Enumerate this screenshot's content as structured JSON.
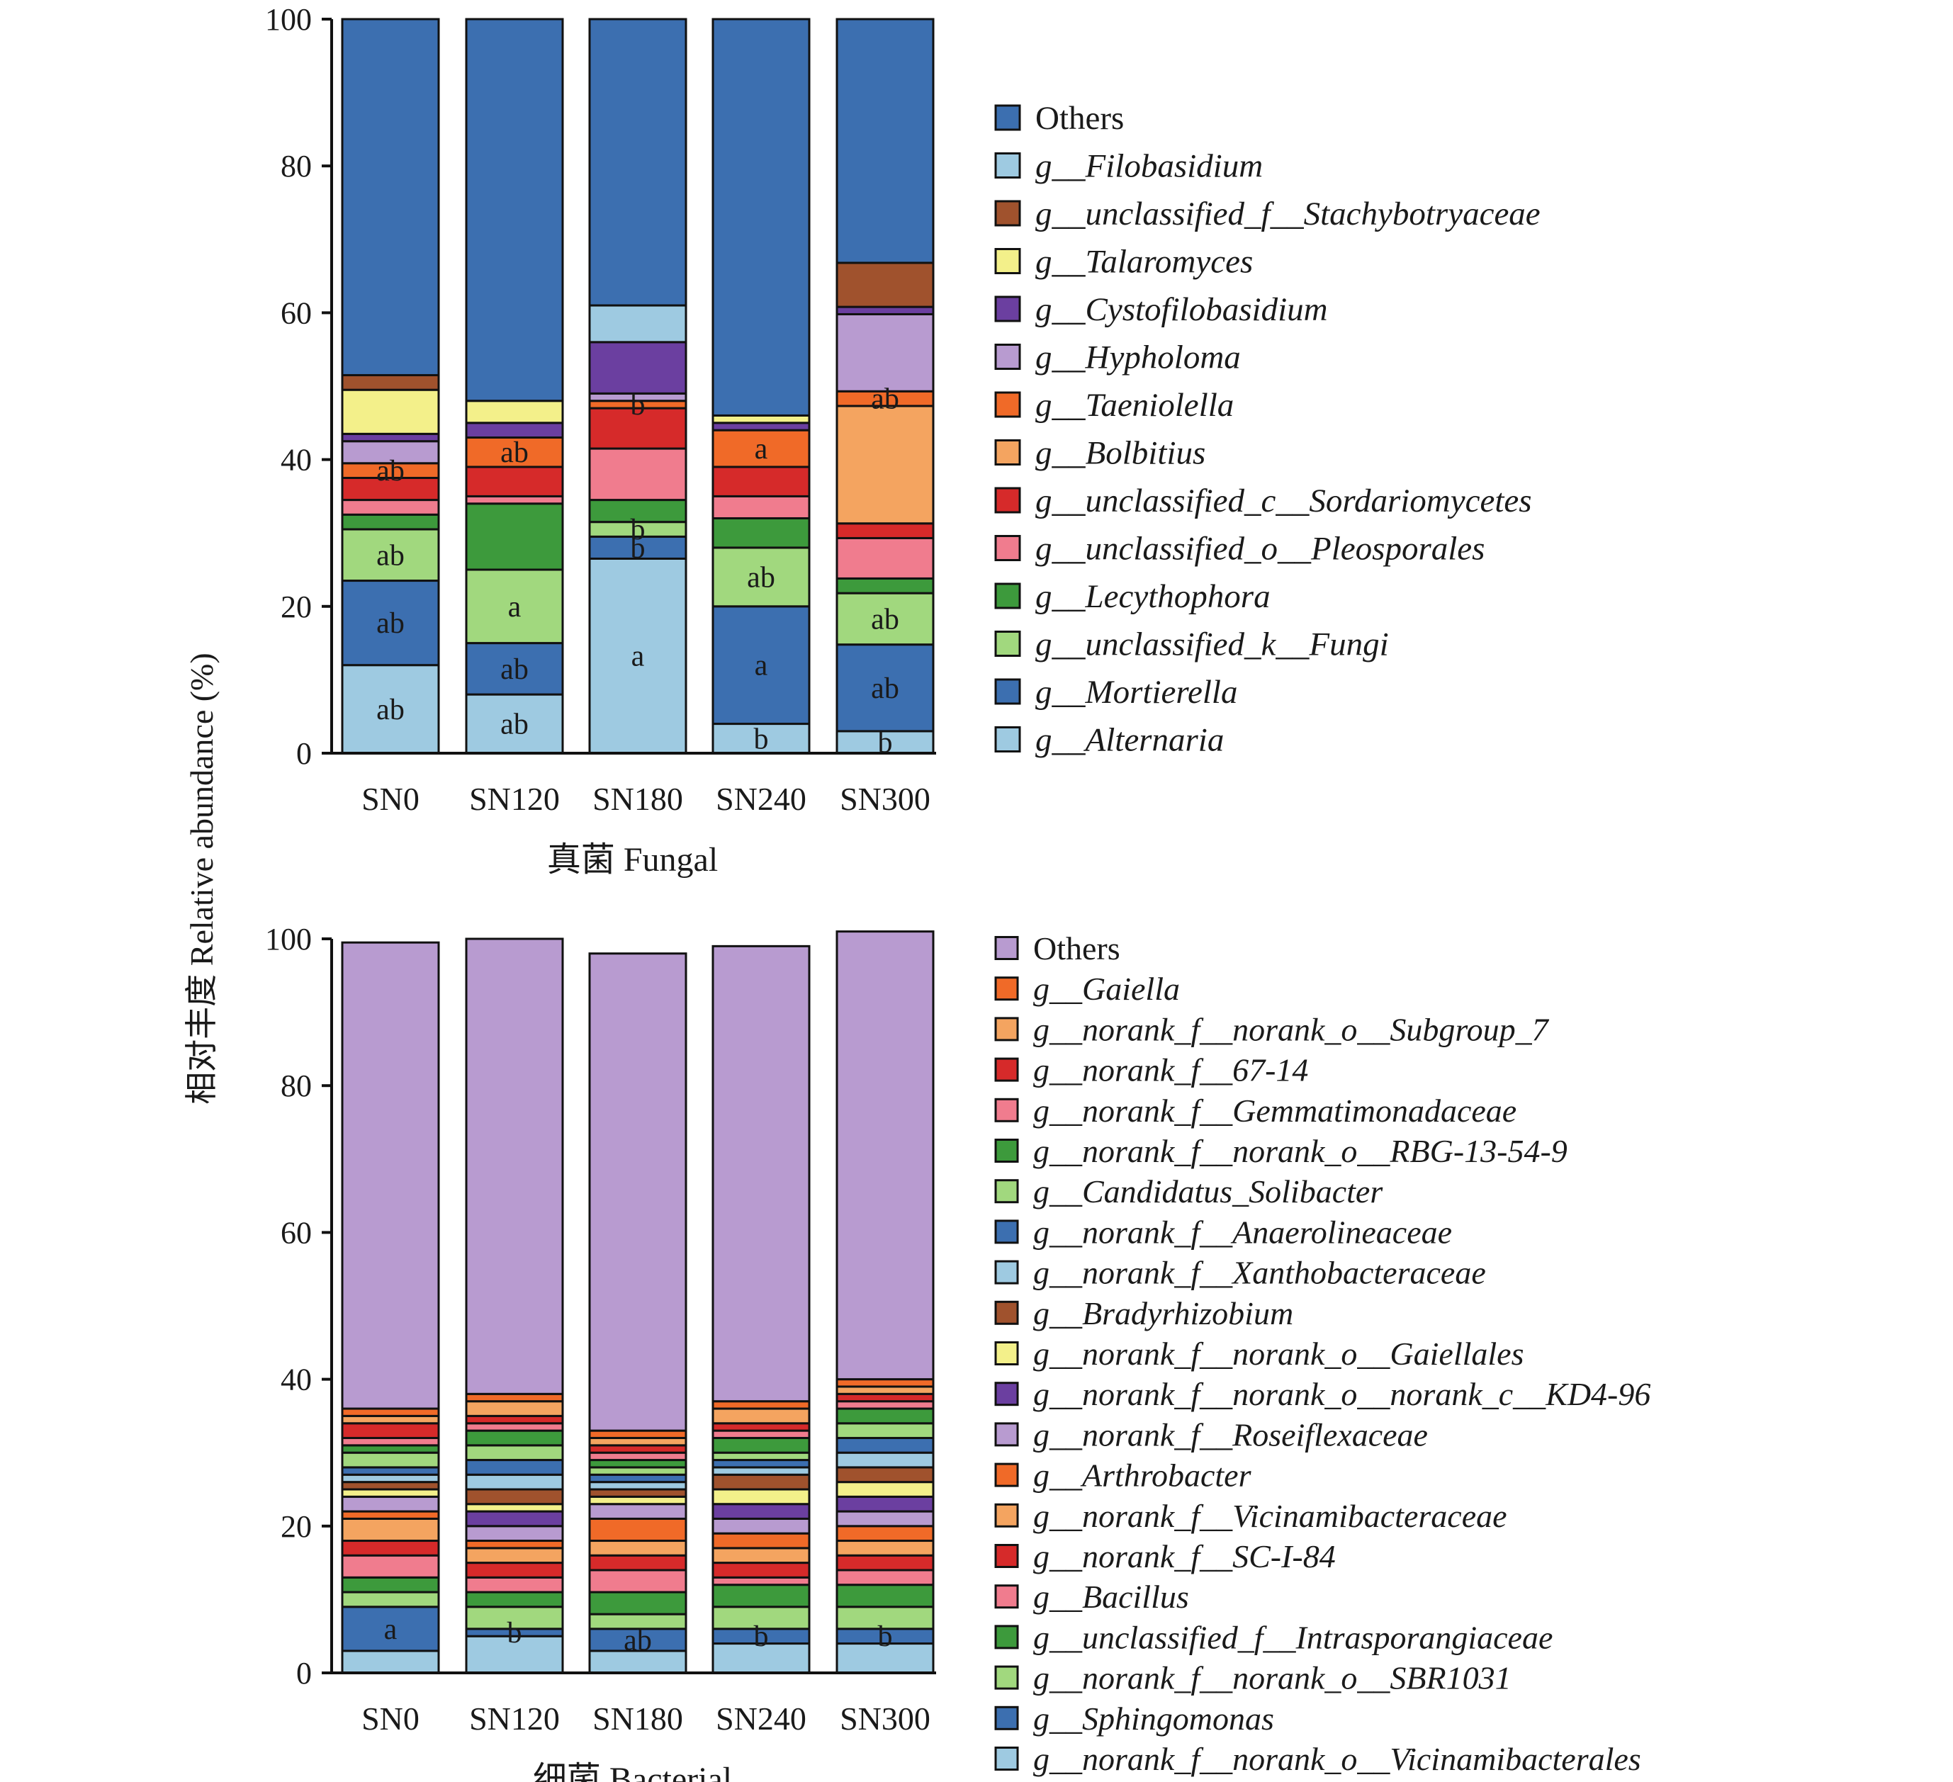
{
  "y_axis_title": "相对丰度 Relative abundance (%)",
  "chart_data": [
    {
      "type": "bar",
      "stacked": true,
      "title": "真菌 Fungal",
      "ylabel": "相对丰度 Relative abundance (%)",
      "ylim": [
        0,
        100
      ],
      "yticks": [
        0,
        20,
        40,
        60,
        80,
        100
      ],
      "categories": [
        "SN0",
        "SN120",
        "SN180",
        "SN240",
        "SN300"
      ],
      "series": [
        {
          "name": "g__Alternaria",
          "color": "#9ecae1",
          "values": [
            12.0,
            8.0,
            26.5,
            4.0,
            3.0
          ],
          "labels": [
            "ab",
            "ab",
            "a",
            "b",
            "b"
          ]
        },
        {
          "name": "g__Mortierella",
          "color": "#3c6fb0",
          "values": [
            11.5,
            7.0,
            3.0,
            16.0,
            11.8
          ],
          "labels": [
            "ab",
            "ab",
            "b",
            "a",
            "ab"
          ]
        },
        {
          "name": "g__unclassified_k__Fungi",
          "color": "#a1d87e",
          "values": [
            7.0,
            10.0,
            2.0,
            8.0,
            7.0
          ],
          "labels": [
            "ab",
            "a",
            "b",
            "ab",
            "ab"
          ]
        },
        {
          "name": "g__Lecythophora",
          "color": "#3d9a3c",
          "values": [
            2.0,
            9.0,
            3.0,
            4.0,
            2.0
          ],
          "labels": [
            "",
            "",
            "",
            "",
            ""
          ]
        },
        {
          "name": "g__unclassified_o__Pleosporales",
          "color": "#f07c8e",
          "values": [
            2.0,
            1.0,
            7.0,
            3.0,
            5.5
          ],
          "labels": [
            "",
            "",
            "",
            "",
            ""
          ]
        },
        {
          "name": "g__unclassified_c__Sordariomycetes",
          "color": "#d62a2a",
          "values": [
            3.0,
            4.0,
            5.5,
            4.0,
            2.0
          ],
          "labels": [
            "",
            "",
            "",
            "",
            ""
          ]
        },
        {
          "name": "g__Bolbitius",
          "color": "#f4a460",
          "values": [
            0.0,
            0.0,
            0.0,
            0.0,
            16.0
          ],
          "labels": [
            "",
            "",
            "",
            "",
            ""
          ]
        },
        {
          "name": "g__Taeniolella",
          "color": "#f06a28",
          "values": [
            2.0,
            4.0,
            1.0,
            5.0,
            2.0
          ],
          "labels": [
            "ab",
            "ab",
            "b",
            "a",
            "ab"
          ]
        },
        {
          "name": "g__Hypholoma",
          "color": "#b89bd0",
          "values": [
            3.0,
            0.0,
            1.0,
            0.0,
            10.5
          ],
          "labels": [
            "",
            "",
            "",
            "",
            ""
          ]
        },
        {
          "name": "g__Cystofilobasidium",
          "color": "#6b3fa0",
          "values": [
            1.0,
            2.0,
            7.0,
            1.0,
            1.0
          ],
          "labels": [
            "",
            "",
            "",
            "",
            ""
          ]
        },
        {
          "name": "g__Talaromyces",
          "color": "#f3f08a",
          "values": [
            6.0,
            3.0,
            0.0,
            1.0,
            0.0
          ],
          "labels": [
            "",
            "",
            "",
            "",
            ""
          ]
        },
        {
          "name": "g__unclassified_f__Stachybotryaceae",
          "color": "#a0522d",
          "values": [
            2.0,
            0.0,
            0.0,
            0.0,
            6.0
          ],
          "labels": [
            "",
            "",
            "",
            "",
            ""
          ]
        },
        {
          "name": "g__Filobasidium",
          "color": "#9ecae1",
          "values": [
            0.0,
            0.0,
            5.0,
            0.0,
            0.0
          ],
          "labels": [
            "",
            "",
            "",
            "",
            ""
          ]
        },
        {
          "name": "Others",
          "color": "#3c6fb0",
          "values": [
            48.5,
            52.0,
            39.0,
            54.0,
            33.2
          ],
          "labels": [
            "",
            "",
            "",
            "",
            ""
          ]
        }
      ],
      "legend_position": "right"
    },
    {
      "type": "bar",
      "stacked": true,
      "title": "细菌 Bacterial",
      "ylabel": "相对丰度 Relative abundance (%)",
      "ylim": [
        0,
        100
      ],
      "yticks": [
        0,
        20,
        40,
        60,
        80,
        100
      ],
      "categories": [
        "SN0",
        "SN120",
        "SN180",
        "SN240",
        "SN300"
      ],
      "series": [
        {
          "name": "g__norank_f__norank_o__Vicinamibacterales",
          "color": "#9ecae1",
          "values": [
            3.0,
            5.0,
            3.0,
            4.0,
            4.0
          ],
          "labels": [
            "",
            "",
            "",
            "",
            ""
          ]
        },
        {
          "name": "g__Sphingomonas",
          "color": "#3c6fb0",
          "values": [
            6.0,
            1.0,
            3.0,
            2.0,
            2.0
          ],
          "labels": [
            "a",
            "b",
            "ab",
            "b",
            "b"
          ]
        },
        {
          "name": "g__norank_f__norank_o__SBR1031",
          "color": "#a1d87e",
          "values": [
            2.0,
            3.0,
            2.0,
            3.0,
            3.0
          ],
          "labels": [
            "",
            "",
            "",
            "",
            ""
          ]
        },
        {
          "name": "g__unclassified_f__Intrasporangiaceae",
          "color": "#3d9a3c",
          "values": [
            2.0,
            2.0,
            3.0,
            3.0,
            3.0
          ],
          "labels": [
            "",
            "",
            "",
            "",
            ""
          ]
        },
        {
          "name": "g__Bacillus",
          "color": "#f07c8e",
          "values": [
            3.0,
            2.0,
            3.0,
            1.0,
            2.0
          ],
          "labels": [
            "",
            "",
            "",
            "",
            ""
          ]
        },
        {
          "name": "g__norank_f__SC-I-84",
          "color": "#d62a2a",
          "values": [
            2.0,
            2.0,
            2.0,
            2.0,
            2.0
          ],
          "labels": [
            "",
            "",
            "",
            "",
            ""
          ]
        },
        {
          "name": "g__norank_f__Vicinamibacteraceae",
          "color": "#f4a460",
          "values": [
            3.0,
            2.0,
            2.0,
            2.0,
            2.0
          ],
          "labels": [
            "",
            "",
            "",
            "",
            ""
          ]
        },
        {
          "name": "g__Arthrobacter",
          "color": "#f06a28",
          "values": [
            1.0,
            1.0,
            3.0,
            2.0,
            2.0
          ],
          "labels": [
            "",
            "",
            "",
            "",
            ""
          ]
        },
        {
          "name": "g__norank_f__Roseiflexaceae",
          "color": "#b89bd0",
          "values": [
            2.0,
            2.0,
            2.0,
            2.0,
            2.0
          ],
          "labels": [
            "",
            "",
            "",
            "",
            ""
          ]
        },
        {
          "name": "g__norank_f__norank_o__norank_c__KD4-96",
          "color": "#6b3fa0",
          "values": [
            0.0,
            2.0,
            0.0,
            2.0,
            2.0
          ],
          "labels": [
            "",
            "",
            "",
            "",
            ""
          ]
        },
        {
          "name": "g__norank_f__norank_o__Gaiellales",
          "color": "#f3f08a",
          "values": [
            1.0,
            1.0,
            1.0,
            2.0,
            2.0
          ],
          "labels": [
            "",
            "",
            "",
            "",
            ""
          ]
        },
        {
          "name": "g__Bradyrhizobium",
          "color": "#a0522d",
          "values": [
            1.0,
            2.0,
            1.0,
            2.0,
            2.0
          ],
          "labels": [
            "",
            "",
            "",
            "",
            ""
          ]
        },
        {
          "name": "g__norank_f__Xanthobacteraceae",
          "color": "#9ecae1",
          "values": [
            1.0,
            2.0,
            1.0,
            1.0,
            2.0
          ],
          "labels": [
            "",
            "",
            "",
            "",
            ""
          ]
        },
        {
          "name": "g__norank_f__Anaerolineaceae",
          "color": "#3c6fb0",
          "values": [
            1.0,
            2.0,
            1.0,
            1.0,
            2.0
          ],
          "labels": [
            "",
            "",
            "",
            "",
            ""
          ]
        },
        {
          "name": "g__Candidatus_Solibacter",
          "color": "#a1d87e",
          "values": [
            2.0,
            2.0,
            1.0,
            1.0,
            2.0
          ],
          "labels": [
            "",
            "",
            "",
            "",
            ""
          ]
        },
        {
          "name": "g__norank_f__norank_o__RBG-13-54-9",
          "color": "#3d9a3c",
          "values": [
            1.0,
            2.0,
            1.0,
            2.0,
            2.0
          ],
          "labels": [
            "",
            "",
            "",
            "",
            ""
          ]
        },
        {
          "name": "g__norank_f__Gemmatimonadaceae",
          "color": "#f07c8e",
          "values": [
            1.0,
            1.0,
            1.0,
            1.0,
            1.0
          ],
          "labels": [
            "",
            "",
            "",
            "",
            ""
          ]
        },
        {
          "name": "g__norank_f__67-14",
          "color": "#d62a2a",
          "values": [
            2.0,
            1.0,
            1.0,
            1.0,
            1.0
          ],
          "labels": [
            "",
            "",
            "",
            "",
            ""
          ]
        },
        {
          "name": "g__norank_f__norank_o__Subgroup_7",
          "color": "#f4a460",
          "values": [
            1.0,
            2.0,
            1.0,
            2.0,
            1.0
          ],
          "labels": [
            "",
            "",
            "",
            "",
            ""
          ]
        },
        {
          "name": "g__Gaiella",
          "color": "#f06a28",
          "values": [
            1.0,
            1.0,
            1.0,
            1.0,
            1.0
          ],
          "labels": [
            "",
            "",
            "",
            "",
            ""
          ]
        },
        {
          "name": "Others",
          "color": "#b89bd0",
          "values": [
            63.5,
            62.0,
            65.0,
            62.0,
            61.0
          ],
          "labels": [
            "",
            "",
            "",
            "",
            ""
          ]
        }
      ],
      "legend_position": "right"
    }
  ]
}
